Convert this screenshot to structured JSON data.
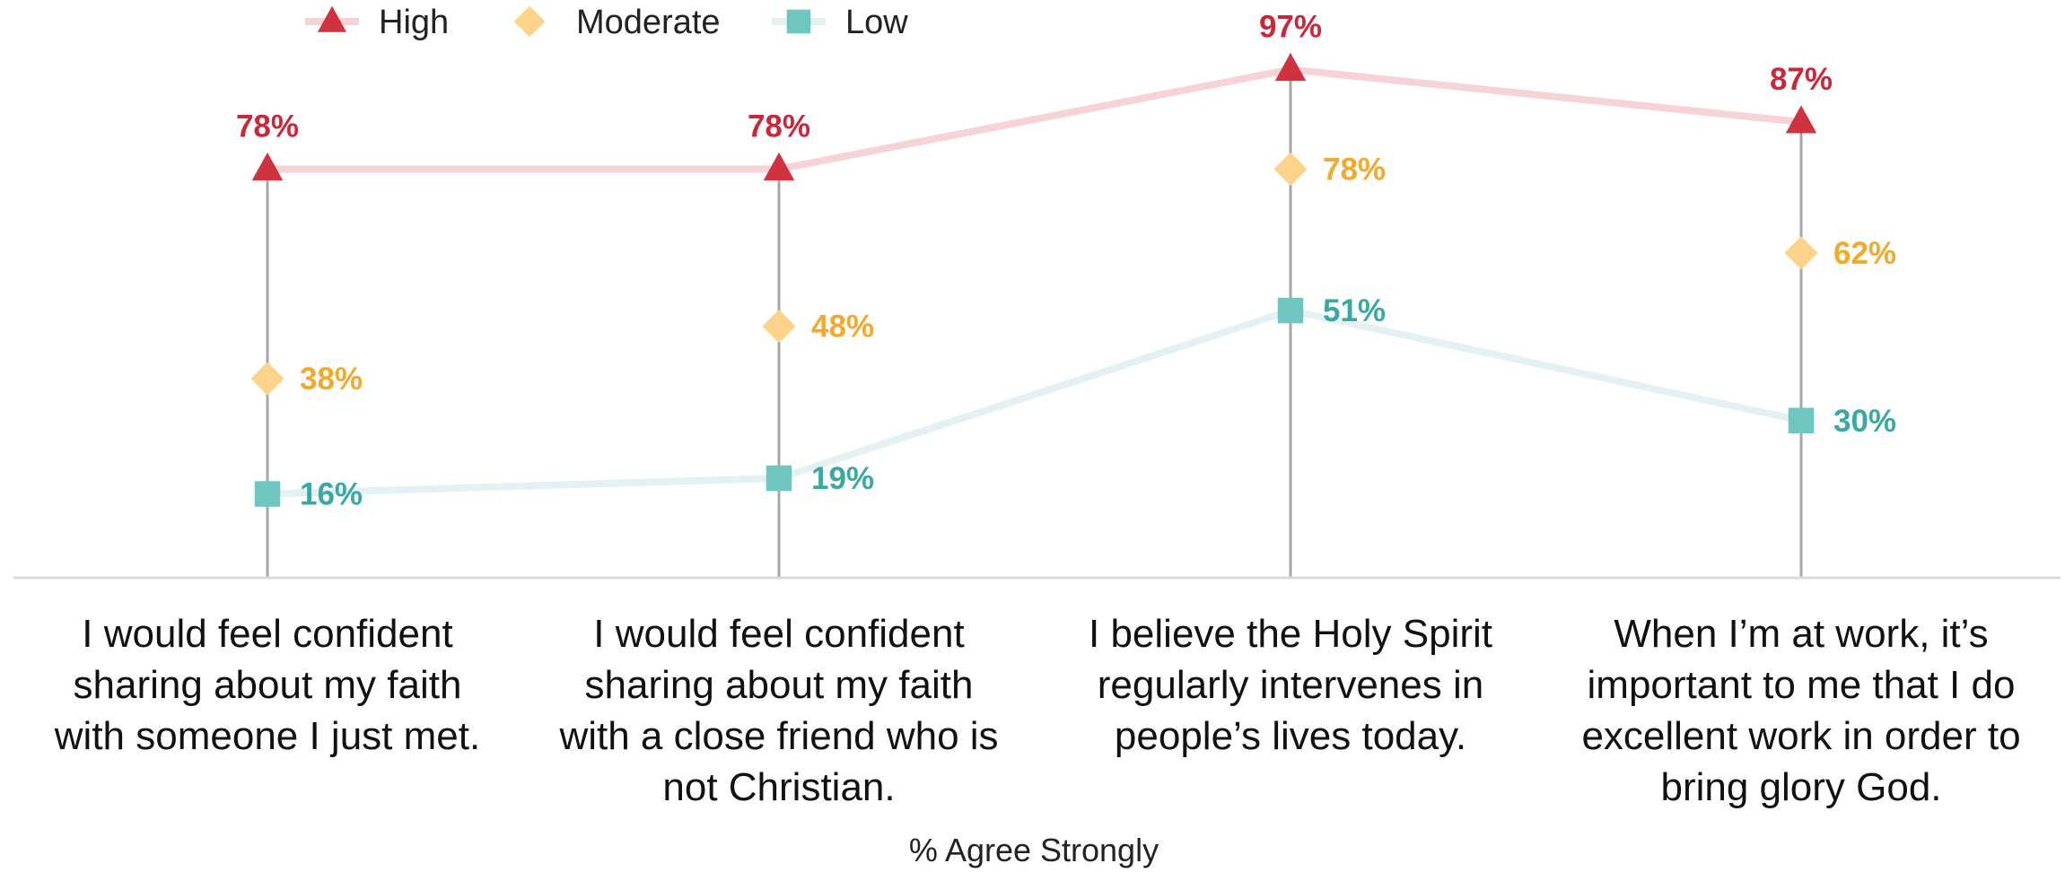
{
  "chart_data": {
    "type": "line",
    "categories": [
      "I would feel confident sharing about my faith with someone I just met.",
      "I would feel confident sharing about my faith with a close friend who is not Christian.",
      "I believe the Holy Spirit regularly intervenes in people’s lives today.",
      "When I’m at work, it’s important to me that I do excellent work in order to bring glory God."
    ],
    "category_lines": [
      [
        "I would feel confident",
        "sharing about my faith",
        "with someone I just met."
      ],
      [
        "I would feel confident",
        "sharing about my faith",
        "with a close friend who is",
        "not Christian."
      ],
      [
        "I believe the Holy Spirit",
        "regularly intervenes in",
        "people’s lives today."
      ],
      [
        "When I’m at work, it’s",
        "important to me that I do",
        "excellent work in order to",
        "bring glory God."
      ]
    ],
    "series": [
      {
        "name": "High",
        "values": [
          78,
          78,
          97,
          87
        ],
        "labels": [
          "78%",
          "78%",
          "97%",
          "87%"
        ],
        "marker": "triangle",
        "marker_color": "#d0333f",
        "line_color": "#f6d3d6",
        "label_color": "#c8283a",
        "label_position": "above"
      },
      {
        "name": "Moderate",
        "values": [
          38,
          48,
          78,
          62
        ],
        "labels": [
          "38%",
          "48%",
          "78%",
          "62%"
        ],
        "marker": "diamond",
        "marker_color": "#fdd38a",
        "line_color": "none",
        "label_color": "#f2a92c",
        "label_position": "right"
      },
      {
        "name": "Low",
        "values": [
          16,
          19,
          51,
          30
        ],
        "labels": [
          "16%",
          "19%",
          "51%",
          "30%"
        ],
        "marker": "square",
        "marker_color": "#6fc6c0",
        "line_color": "#e3f1f3",
        "label_color": "#3ba8a2",
        "label_position": "right"
      }
    ],
    "xlabel": "% Agree Strongly",
    "ylabel": "",
    "ylim": [
      0,
      100
    ],
    "legend_position": "top-left",
    "grid": false,
    "axis_color": "#d9d9d9",
    "drop_line_color": "#a6a6a6"
  }
}
